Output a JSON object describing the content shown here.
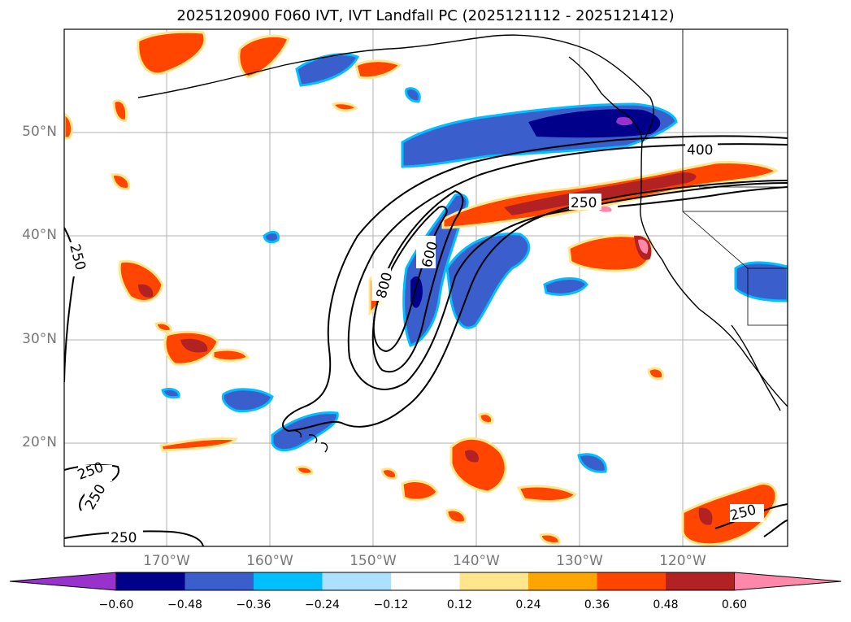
{
  "title": "2025120900 F060 IVT, IVT Landfall PC (2025121112 - 2025121412)",
  "axes": {
    "lat_labels": [
      "50°N",
      "40°N",
      "30°N",
      "20°N"
    ],
    "lon_labels": [
      "170°W",
      "160°W",
      "150°W",
      "140°W",
      "130°W",
      "120°W"
    ]
  },
  "contour_labels": [
    "400",
    "250",
    "250",
    "600",
    "800",
    "250",
    "250",
    "250",
    "250"
  ],
  "colorbar": {
    "ticks": [
      "−0.60",
      "−0.48",
      "−0.36",
      "−0.24",
      "−0.12",
      "0.12",
      "0.24",
      "0.36",
      "0.48",
      "0.60"
    ],
    "colors": [
      "#9932CC",
      "#00008B",
      "#3A5FCD",
      "#00BFFF",
      "#ADDFFF",
      "#FFFFFF",
      "#FFE68C",
      "#FFA500",
      "#FF4500",
      "#B22222",
      "#FF88AA"
    ]
  },
  "colors": {
    "neg_purple": "#9932CC",
    "neg_navy": "#00008B",
    "neg_blue": "#3A5FCD",
    "neg_sky": "#00BFFF",
    "neg_pale": "#ADDFFF",
    "pos_yellow": "#FFE68C",
    "pos_orange": "#FFA500",
    "pos_red": "#FF4500",
    "pos_dark": "#B22222",
    "pos_pink": "#FF88AA"
  }
}
